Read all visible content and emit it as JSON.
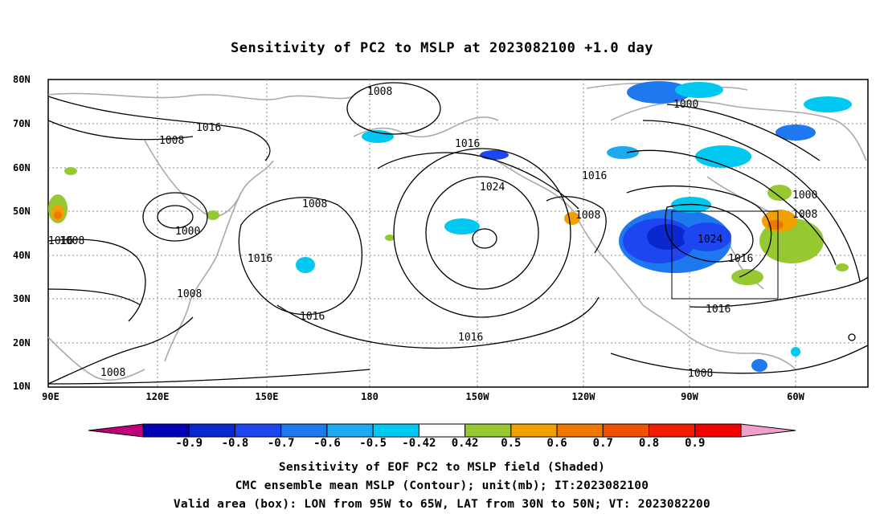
{
  "title": "Sensitivity of PC2 to MSLP at 2023082100 +1.0 day",
  "map": {
    "lat_labels": [
      "80N",
      "70N",
      "60N",
      "50N",
      "40N",
      "30N",
      "20N",
      "10N"
    ],
    "lon_labels": [
      "90E",
      "120E",
      "150E",
      "180",
      "150W",
      "120W",
      "90W",
      "60W"
    ],
    "contour_labels": [
      "1008",
      "1016",
      "1008",
      "1016",
      "1016",
      "1000",
      "1008",
      "1024",
      "1008",
      "1016",
      "1016",
      "1008",
      "1016",
      "1008",
      "1016",
      "1000",
      "1000",
      "1008",
      "1024",
      "1016",
      "1016",
      "1008",
      "1008"
    ],
    "valid_box": {
      "lon_range": [
        "95W",
        "65W"
      ],
      "lat_range": [
        "30N",
        "50N"
      ]
    }
  },
  "colorbar": {
    "labels": [
      "-0.9",
      "-0.8",
      "-0.7",
      "-0.6",
      "-0.5",
      "-0.42",
      "0.42",
      "0.5",
      "0.6",
      "0.7",
      "0.8",
      "0.9"
    ],
    "colors": [
      "#c0007a",
      "#0000b4",
      "#0a28d0",
      "#1e46f0",
      "#1e78f0",
      "#1eaaf0",
      "#00c8f0",
      "#ffffff",
      "#96c832",
      "#f0a000",
      "#f07800",
      "#f05000",
      "#f01e00",
      "#f00000",
      "#f0a0c8"
    ]
  },
  "captions": [
    "Sensitivity of EOF PC2 to MSLP field (Shaded)",
    "CMC ensemble mean MSLP (Contour); unit(mb); IT:2023082100",
    "Valid area (box): LON from 95W to 65W, LAT from 30N to 50N; VT: 2023082200"
  ]
}
